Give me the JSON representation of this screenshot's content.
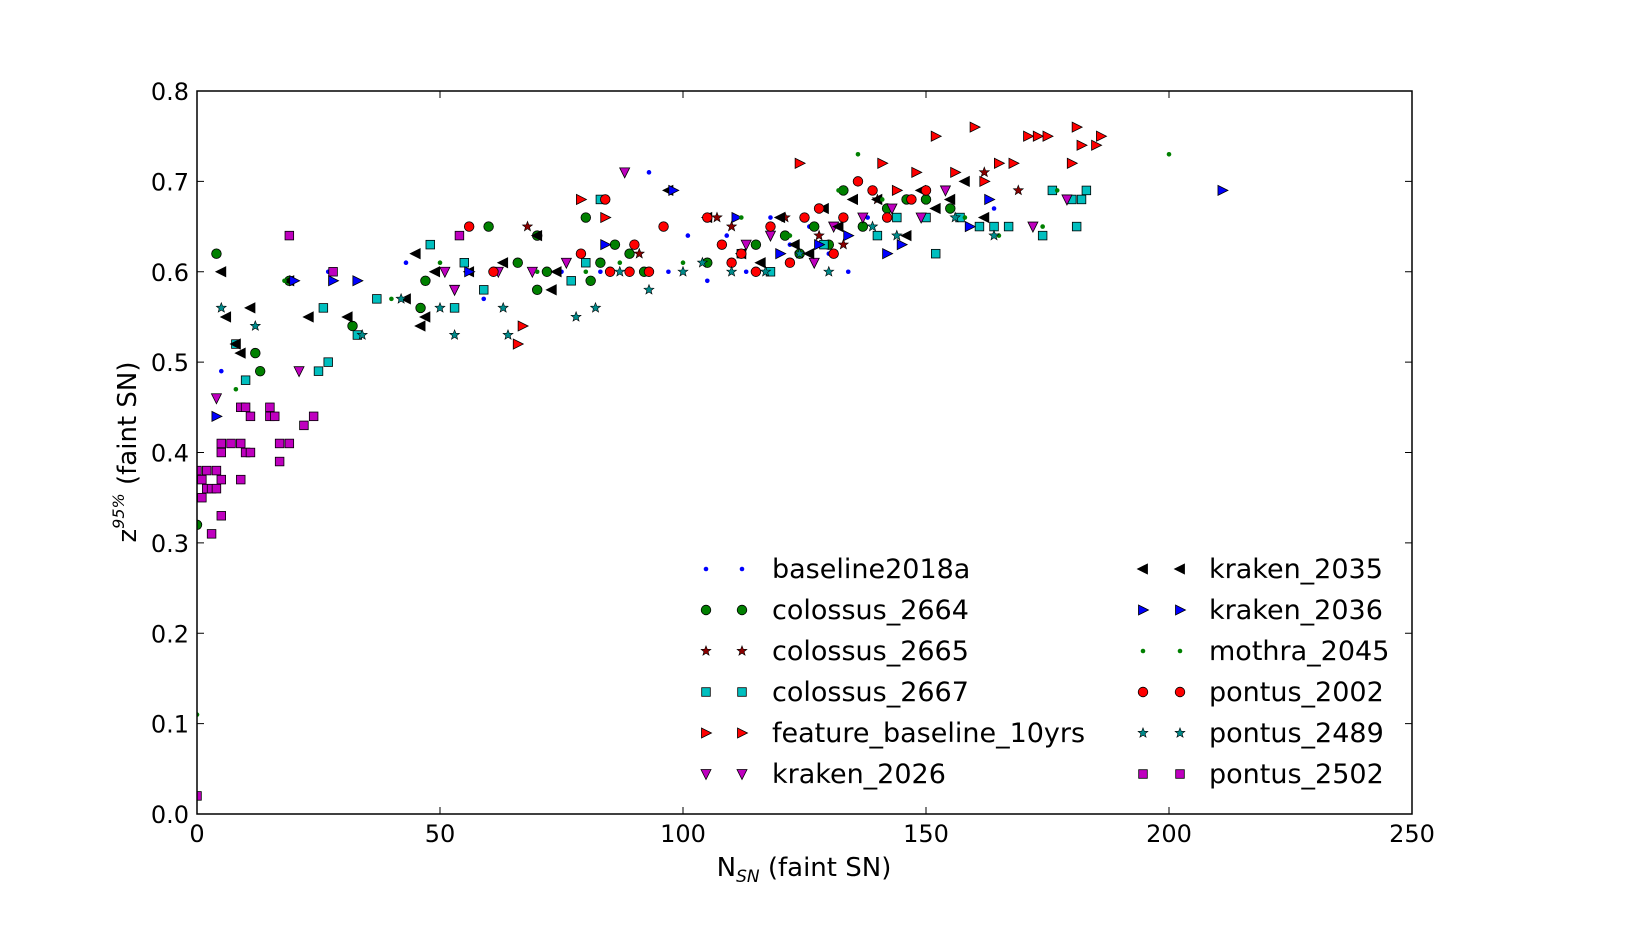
{
  "chart_data": {
    "type": "scatter",
    "xlabel": {
      "main": "N",
      "sub": "SN",
      "rest": " (faint SN)"
    },
    "ylabel": {
      "main": "z",
      "sup": "95%",
      "rest": " (faint SN)"
    },
    "xlim": [
      0,
      250
    ],
    "ylim": [
      0.0,
      0.8
    ],
    "xticks": [
      "0",
      "50",
      "100",
      "150",
      "200",
      "250"
    ],
    "yticks": [
      "0.0",
      "0.1",
      "0.2",
      "0.3",
      "0.4",
      "0.5",
      "0.6",
      "0.7",
      "0.8"
    ],
    "grid": false,
    "legend_position": "lower-right",
    "series": [
      {
        "name": "baseline2018a",
        "marker": "dot",
        "color": "#0000ff",
        "points": [
          [
            5,
            0.49
          ],
          [
            27,
            0.6
          ],
          [
            43,
            0.61
          ],
          [
            56,
            0.6
          ],
          [
            59,
            0.57
          ],
          [
            63,
            0.61
          ],
          [
            75,
            0.6
          ],
          [
            83,
            0.6
          ],
          [
            93,
            0.71
          ],
          [
            97,
            0.6
          ],
          [
            101,
            0.64
          ],
          [
            105,
            0.59
          ],
          [
            109,
            0.64
          ],
          [
            113,
            0.6
          ],
          [
            118,
            0.66
          ],
          [
            122,
            0.63
          ],
          [
            126,
            0.65
          ],
          [
            130,
            0.62
          ],
          [
            134,
            0.6
          ],
          [
            138,
            0.66
          ],
          [
            164,
            0.67
          ]
        ]
      },
      {
        "name": "colossus_2664",
        "marker": "circle",
        "color": "#008000",
        "points": [
          [
            0,
            0.32
          ],
          [
            4,
            0.62
          ],
          [
            12,
            0.51
          ],
          [
            13,
            0.49
          ],
          [
            19,
            0.59
          ],
          [
            32,
            0.54
          ],
          [
            46,
            0.56
          ],
          [
            47,
            0.59
          ],
          [
            60,
            0.65
          ],
          [
            66,
            0.61
          ],
          [
            70,
            0.64
          ],
          [
            70,
            0.58
          ],
          [
            72,
            0.6
          ],
          [
            80,
            0.66
          ],
          [
            81,
            0.59
          ],
          [
            83,
            0.61
          ],
          [
            86,
            0.63
          ],
          [
            89,
            0.62
          ],
          [
            92,
            0.6
          ],
          [
            105,
            0.61
          ],
          [
            115,
            0.63
          ],
          [
            121,
            0.64
          ],
          [
            124,
            0.62
          ],
          [
            127,
            0.65
          ],
          [
            130,
            0.63
          ],
          [
            133,
            0.69
          ],
          [
            137,
            0.65
          ],
          [
            142,
            0.67
          ],
          [
            146,
            0.68
          ],
          [
            150,
            0.68
          ],
          [
            155,
            0.67
          ]
        ]
      },
      {
        "name": "colossus_2665",
        "marker": "star",
        "color": "#8b0000",
        "points": [
          [
            68,
            0.65
          ],
          [
            91,
            0.62
          ],
          [
            107,
            0.66
          ],
          [
            110,
            0.65
          ],
          [
            121,
            0.66
          ],
          [
            128,
            0.64
          ],
          [
            133,
            0.63
          ],
          [
            140,
            0.68
          ],
          [
            162,
            0.71
          ],
          [
            169,
            0.69
          ]
        ]
      },
      {
        "name": "colossus_2667",
        "marker": "square",
        "color": "#00bfbf",
        "points": [
          [
            8,
            0.52
          ],
          [
            10,
            0.48
          ],
          [
            25,
            0.49
          ],
          [
            26,
            0.56
          ],
          [
            27,
            0.5
          ],
          [
            33,
            0.53
          ],
          [
            37,
            0.57
          ],
          [
            48,
            0.63
          ],
          [
            53,
            0.56
          ],
          [
            55,
            0.61
          ],
          [
            59,
            0.58
          ],
          [
            77,
            0.59
          ],
          [
            80,
            0.61
          ],
          [
            83,
            0.68
          ],
          [
            112,
            0.62
          ],
          [
            118,
            0.6
          ],
          [
            129,
            0.63
          ],
          [
            140,
            0.64
          ],
          [
            144,
            0.66
          ],
          [
            150,
            0.66
          ],
          [
            152,
            0.62
          ],
          [
            157,
            0.66
          ],
          [
            161,
            0.65
          ],
          [
            164,
            0.65
          ],
          [
            167,
            0.65
          ],
          [
            174,
            0.64
          ],
          [
            176,
            0.69
          ],
          [
            180,
            0.68
          ],
          [
            182,
            0.68
          ],
          [
            183,
            0.69
          ],
          [
            181,
            0.65
          ]
        ]
      },
      {
        "name": "feature_baseline_10yrs",
        "marker": "triangle-right",
        "color": "#ff0000",
        "points": [
          [
            66,
            0.52
          ],
          [
            67,
            0.54
          ],
          [
            79,
            0.68
          ],
          [
            84,
            0.66
          ],
          [
            124,
            0.72
          ],
          [
            141,
            0.72
          ],
          [
            144,
            0.69
          ],
          [
            148,
            0.71
          ],
          [
            152,
            0.75
          ],
          [
            156,
            0.71
          ],
          [
            160,
            0.76
          ],
          [
            162,
            0.7
          ],
          [
            165,
            0.72
          ],
          [
            168,
            0.72
          ],
          [
            171,
            0.75
          ],
          [
            173,
            0.75
          ],
          [
            175,
            0.75
          ],
          [
            181,
            0.76
          ],
          [
            182,
            0.74
          ],
          [
            186,
            0.75
          ],
          [
            185,
            0.74
          ],
          [
            180,
            0.72
          ]
        ]
      },
      {
        "name": "kraken_2026",
        "marker": "triangle-down",
        "color": "#bf00bf",
        "points": [
          [
            4,
            0.46
          ],
          [
            21,
            0.49
          ],
          [
            51,
            0.6
          ],
          [
            53,
            0.58
          ],
          [
            62,
            0.6
          ],
          [
            69,
            0.6
          ],
          [
            76,
            0.61
          ],
          [
            88,
            0.71
          ],
          [
            113,
            0.63
          ],
          [
            118,
            0.64
          ],
          [
            127,
            0.61
          ],
          [
            131,
            0.65
          ],
          [
            137,
            0.66
          ],
          [
            143,
            0.67
          ],
          [
            149,
            0.66
          ],
          [
            154,
            0.69
          ],
          [
            172,
            0.65
          ],
          [
            179,
            0.68
          ]
        ]
      },
      {
        "name": "kraken_2035",
        "marker": "triangle-left",
        "color": "#000000",
        "points": [
          [
            5,
            0.6
          ],
          [
            6,
            0.55
          ],
          [
            8,
            0.52
          ],
          [
            9,
            0.51
          ],
          [
            11,
            0.56
          ],
          [
            19,
            0.59
          ],
          [
            23,
            0.55
          ],
          [
            31,
            0.55
          ],
          [
            43,
            0.57
          ],
          [
            45,
            0.62
          ],
          [
            46,
            0.54
          ],
          [
            47,
            0.55
          ],
          [
            49,
            0.6
          ],
          [
            56,
            0.6
          ],
          [
            63,
            0.61
          ],
          [
            70,
            0.64
          ],
          [
            73,
            0.58
          ],
          [
            74,
            0.6
          ],
          [
            97,
            0.69
          ],
          [
            105,
            0.66
          ],
          [
            112,
            0.62
          ],
          [
            116,
            0.61
          ],
          [
            120,
            0.66
          ],
          [
            123,
            0.63
          ],
          [
            126,
            0.62
          ],
          [
            129,
            0.67
          ],
          [
            132,
            0.65
          ],
          [
            135,
            0.68
          ],
          [
            140,
            0.68
          ],
          [
            146,
            0.64
          ],
          [
            149,
            0.69
          ],
          [
            152,
            0.67
          ],
          [
            155,
            0.68
          ],
          [
            158,
            0.7
          ],
          [
            162,
            0.66
          ]
        ]
      },
      {
        "name": "kraken_2036",
        "marker": "triangle-right",
        "color": "#0000ff",
        "points": [
          [
            4,
            0.44
          ],
          [
            20,
            0.59
          ],
          [
            28,
            0.59
          ],
          [
            33,
            0.59
          ],
          [
            56,
            0.6
          ],
          [
            84,
            0.63
          ],
          [
            98,
            0.69
          ],
          [
            111,
            0.66
          ],
          [
            120,
            0.62
          ],
          [
            128,
            0.63
          ],
          [
            134,
            0.64
          ],
          [
            142,
            0.62
          ],
          [
            145,
            0.63
          ],
          [
            159,
            0.65
          ],
          [
            163,
            0.68
          ],
          [
            211,
            0.69
          ]
        ]
      },
      {
        "name": "mothra_2045",
        "marker": "dot",
        "color": "#008000",
        "points": [
          [
            0,
            0.11
          ],
          [
            8,
            0.47
          ],
          [
            18,
            0.59
          ],
          [
            40,
            0.57
          ],
          [
            50,
            0.61
          ],
          [
            70,
            0.6
          ],
          [
            80,
            0.6
          ],
          [
            87,
            0.61
          ],
          [
            100,
            0.61
          ],
          [
            112,
            0.66
          ],
          [
            122,
            0.64
          ],
          [
            132,
            0.69
          ],
          [
            141,
            0.68
          ],
          [
            158,
            0.66
          ],
          [
            165,
            0.64
          ],
          [
            174,
            0.65
          ],
          [
            200,
            0.73
          ],
          [
            177,
            0.69
          ],
          [
            136,
            0.73
          ]
        ]
      },
      {
        "name": "pontus_2002",
        "marker": "circle",
        "color": "#ff0000",
        "points": [
          [
            56,
            0.65
          ],
          [
            61,
            0.6
          ],
          [
            79,
            0.62
          ],
          [
            84,
            0.68
          ],
          [
            85,
            0.6
          ],
          [
            89,
            0.6
          ],
          [
            90,
            0.63
          ],
          [
            93,
            0.6
          ],
          [
            96,
            0.65
          ],
          [
            105,
            0.66
          ],
          [
            108,
            0.63
          ],
          [
            110,
            0.61
          ],
          [
            112,
            0.62
          ],
          [
            115,
            0.6
          ],
          [
            118,
            0.65
          ],
          [
            122,
            0.61
          ],
          [
            125,
            0.66
          ],
          [
            128,
            0.67
          ],
          [
            131,
            0.62
          ],
          [
            133,
            0.66
          ],
          [
            136,
            0.7
          ],
          [
            139,
            0.69
          ],
          [
            142,
            0.66
          ],
          [
            147,
            0.68
          ],
          [
            150,
            0.69
          ]
        ]
      },
      {
        "name": "pontus_2489",
        "marker": "star",
        "color": "#008b8b",
        "points": [
          [
            5,
            0.56
          ],
          [
            12,
            0.54
          ],
          [
            34,
            0.53
          ],
          [
            42,
            0.57
          ],
          [
            50,
            0.56
          ],
          [
            53,
            0.53
          ],
          [
            63,
            0.56
          ],
          [
            64,
            0.53
          ],
          [
            78,
            0.55
          ],
          [
            82,
            0.56
          ],
          [
            87,
            0.6
          ],
          [
            93,
            0.58
          ],
          [
            100,
            0.6
          ],
          [
            104,
            0.61
          ],
          [
            110,
            0.6
          ],
          [
            117,
            0.6
          ],
          [
            124,
            0.62
          ],
          [
            130,
            0.6
          ],
          [
            139,
            0.65
          ],
          [
            144,
            0.64
          ],
          [
            156,
            0.66
          ],
          [
            164,
            0.64
          ]
        ]
      },
      {
        "name": "pontus_2502",
        "marker": "square",
        "color": "#bf00bf",
        "points": [
          [
            0,
            0.02
          ],
          [
            0,
            0.38
          ],
          [
            1,
            0.35
          ],
          [
            1,
            0.37
          ],
          [
            2,
            0.36
          ],
          [
            2,
            0.38
          ],
          [
            3,
            0.36
          ],
          [
            3,
            0.31
          ],
          [
            4,
            0.38
          ],
          [
            4,
            0.36
          ],
          [
            5,
            0.41
          ],
          [
            5,
            0.4
          ],
          [
            5,
            0.33
          ],
          [
            5,
            0.37
          ],
          [
            7,
            0.41
          ],
          [
            9,
            0.45
          ],
          [
            9,
            0.37
          ],
          [
            9,
            0.41
          ],
          [
            10,
            0.4
          ],
          [
            10,
            0.45
          ],
          [
            11,
            0.4
          ],
          [
            11,
            0.44
          ],
          [
            15,
            0.45
          ],
          [
            15,
            0.44
          ],
          [
            16,
            0.44
          ],
          [
            17,
            0.39
          ],
          [
            17,
            0.41
          ],
          [
            19,
            0.41
          ],
          [
            19,
            0.64
          ],
          [
            22,
            0.43
          ],
          [
            24,
            0.44
          ],
          [
            28,
            0.6
          ],
          [
            54,
            0.64
          ]
        ]
      }
    ]
  }
}
